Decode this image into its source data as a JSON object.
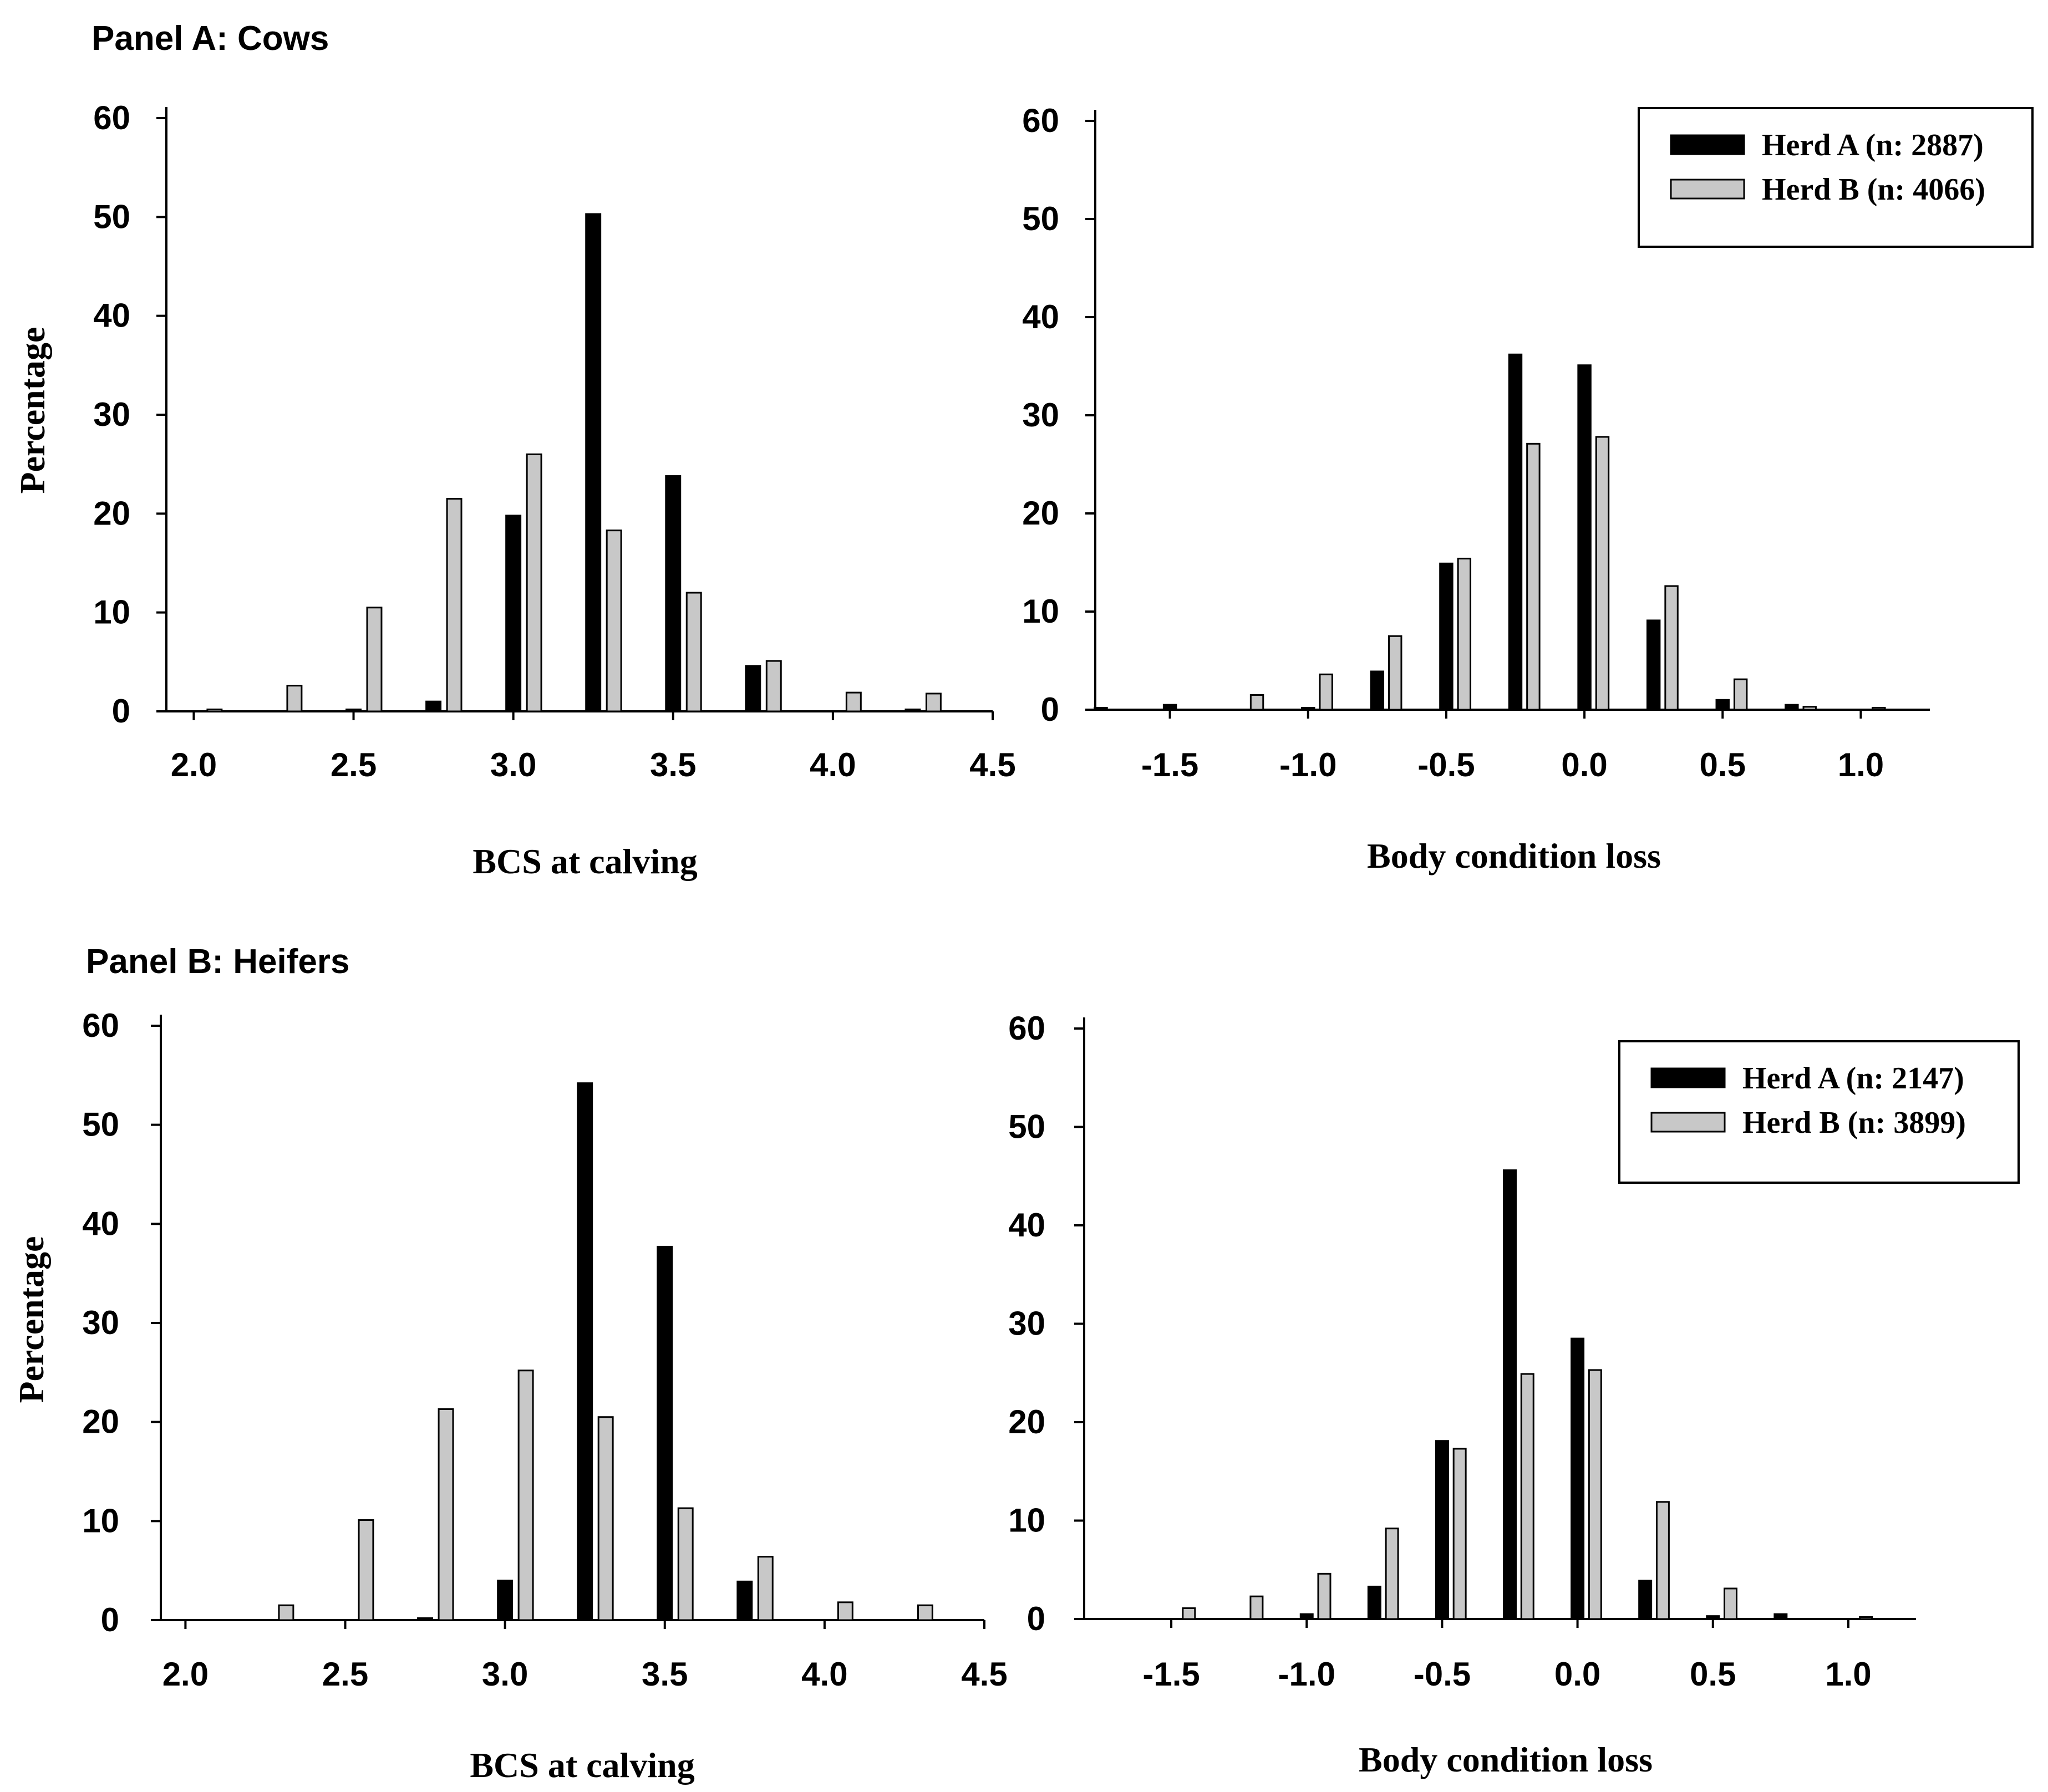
{
  "colors": {
    "herd_a": "#000000",
    "herd_b": "#c8c8c8",
    "axis": "#000000"
  },
  "panels": [
    {
      "title": "Panel A: Cows"
    },
    {
      "title": "Panel B: Heifers"
    }
  ],
  "chart_data": [
    {
      "type": "bar",
      "panel": "Panel A: Cows",
      "xlabel": "BCS at calving",
      "ylabel": "Percentage",
      "xlim": [
        1.975,
        4.5
      ],
      "ylim": [
        0,
        60
      ],
      "xticks": [
        "2.0",
        "2.5",
        "3.0",
        "3.5",
        "4.0",
        "4.5"
      ],
      "yticks": [
        "0",
        "10",
        "20",
        "30",
        "40",
        "50",
        "60"
      ],
      "categories": [
        "2.00",
        "2.25",
        "2.50",
        "2.75",
        "3.00",
        "3.25",
        "3.50",
        "3.75",
        "4.00",
        "4.25"
      ],
      "series": [
        {
          "name": "Herd A",
          "values": [
            0,
            0,
            0.2,
            1,
            19.8,
            50.3,
            23.8,
            4.6,
            0,
            0.2
          ]
        },
        {
          "name": "Herd B",
          "values": [
            0.2,
            2.6,
            10.5,
            21.5,
            26,
            18.3,
            12,
            5.1,
            1.9,
            1.8
          ]
        }
      ]
    },
    {
      "type": "bar",
      "panel": "Panel A: Cows",
      "xlabel": "Body condition loss",
      "ylabel": "",
      "xlim": [
        -1.75,
        1.25
      ],
      "ylim": [
        0,
        60
      ],
      "xticks": [
        "-1.5",
        "-1.0",
        "-0.5",
        "0.0",
        "0.5",
        "1.0"
      ],
      "yticks": [
        "0",
        "10",
        "20",
        "30",
        "40",
        "50",
        "60"
      ],
      "legend": {
        "position": "top-right",
        "entries": [
          "Herd A (n: 2887)",
          "Herd B (n: 4066)"
        ]
      },
      "categories": [
        "-1.75",
        "-1.50",
        "-1.25",
        "-1.00",
        "-0.75",
        "-0.50",
        "-0.25",
        "0.00",
        "0.25",
        "0.50",
        "0.75",
        "1.00"
      ],
      "series": [
        {
          "name": "Herd A",
          "values": [
            0.2,
            0.5,
            0,
            0.2,
            3.9,
            14.9,
            36.2,
            35.1,
            9.1,
            1,
            0.5,
            0
          ]
        },
        {
          "name": "Herd B",
          "values": [
            0,
            0,
            1.5,
            3.6,
            7.5,
            15.4,
            27.1,
            27.8,
            12.6,
            3.1,
            0.3,
            0.2
          ]
        }
      ]
    },
    {
      "type": "bar",
      "panel": "Panel B: Heifers",
      "xlabel": "BCS at calving",
      "ylabel": "Percentage",
      "xlim": [
        1.975,
        4.5
      ],
      "ylim": [
        0,
        60
      ],
      "xticks": [
        "2.0",
        "2.5",
        "3.0",
        "3.5",
        "4.0",
        "4.5"
      ],
      "yticks": [
        "0",
        "10",
        "20",
        "30",
        "40",
        "50",
        "60"
      ],
      "categories": [
        "2.00",
        "2.25",
        "2.50",
        "2.75",
        "3.00",
        "3.25",
        "3.50",
        "3.75",
        "4.00",
        "4.25"
      ],
      "series": [
        {
          "name": "Herd A",
          "values": [
            0,
            0,
            0,
            0.2,
            4,
            54.2,
            37.7,
            3.9,
            0,
            0
          ]
        },
        {
          "name": "Herd B",
          "values": [
            0,
            1.5,
            10.1,
            21.3,
            25.2,
            20.5,
            11.3,
            6.4,
            1.8,
            1.5
          ]
        }
      ]
    },
    {
      "type": "bar",
      "panel": "Panel B: Heifers",
      "xlabel": "Body condition loss",
      "ylabel": "",
      "xlim": [
        -1.75,
        1.25
      ],
      "ylim": [
        0,
        60
      ],
      "xticks": [
        "-1.5",
        "-1.0",
        "-0.5",
        "0.0",
        "0.5",
        "1.0"
      ],
      "yticks": [
        "0",
        "10",
        "20",
        "30",
        "40",
        "50",
        "60"
      ],
      "legend": {
        "position": "top-right",
        "entries": [
          "Herd A (n: 2147)",
          "Herd B (n: 3899)"
        ]
      },
      "categories": [
        "-1.75",
        "-1.50",
        "-1.25",
        "-1.00",
        "-0.75",
        "-0.50",
        "-0.25",
        "0.00",
        "0.25",
        "0.50",
        "0.75",
        "1.00"
      ],
      "series": [
        {
          "name": "Herd A",
          "values": [
            0,
            0,
            0,
            0.5,
            3.3,
            18.1,
            45.6,
            28.5,
            3.9,
            0.3,
            0.5,
            0
          ]
        },
        {
          "name": "Herd B",
          "values": [
            0,
            1.1,
            2.3,
            4.6,
            9.2,
            17.3,
            24.9,
            25.3,
            11.9,
            3.1,
            0,
            0.2
          ]
        }
      ]
    }
  ]
}
